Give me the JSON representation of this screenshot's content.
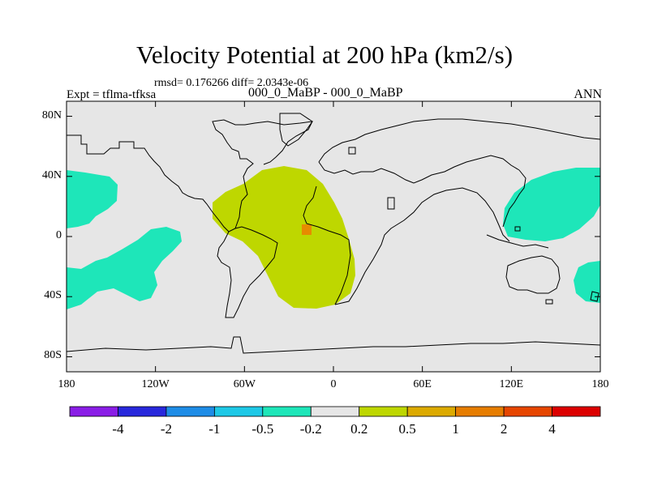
{
  "title": "Velocity Potential at 200 hPa (km2/s)",
  "stats_text": "rmsd= 0.176266 diff= 2.0343e-06",
  "expt_text": "Expt = tflma-tfksa",
  "experiment_text": "000_0_MaBP - 000_0_MaBP",
  "season": "ANN",
  "map": {
    "projection": "cylindrical equidistant",
    "lon_range": [
      -180,
      180
    ],
    "lat_range": [
      -90,
      90
    ],
    "lat_ticks": [
      {
        "value": 80,
        "label": "80N"
      },
      {
        "value": 40,
        "label": "40N"
      },
      {
        "value": 0,
        "label": "0"
      },
      {
        "value": -40,
        "label": "40S"
      },
      {
        "value": -80,
        "label": "80S"
      }
    ],
    "lon_ticks": [
      {
        "value": -180,
        "label": "180"
      },
      {
        "value": -120,
        "label": "120W"
      },
      {
        "value": -60,
        "label": "60W"
      },
      {
        "value": 0,
        "label": "0"
      },
      {
        "value": 60,
        "label": "60E"
      },
      {
        "value": 120,
        "label": "120E"
      },
      {
        "value": 180,
        "label": "180"
      }
    ],
    "background_color": "#e6e6e6",
    "coastline_color": "#000000"
  },
  "colorbar": {
    "colors": [
      "#8a1ee6",
      "#2828dc",
      "#1e8ce6",
      "#1ec8e6",
      "#1ee6b9",
      "#e6e6e6",
      "#bed700",
      "#dcaa00",
      "#e67d00",
      "#e64600",
      "#dc0000"
    ],
    "labels": [
      "-4",
      "-2",
      "-1",
      "-0.5",
      "-0.2",
      "0.2",
      "0.5",
      "1",
      "2",
      "4"
    ]
  }
}
